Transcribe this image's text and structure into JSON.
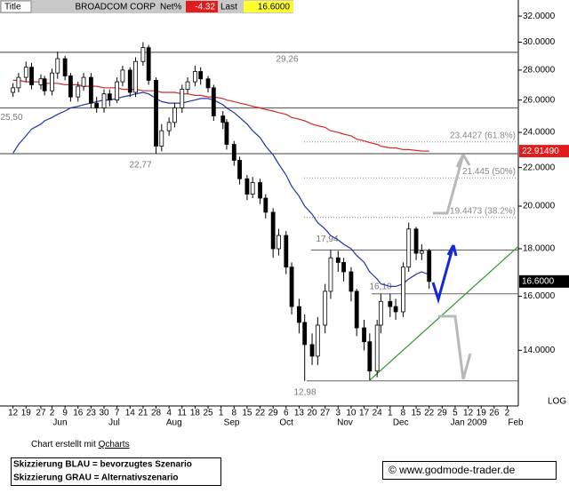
{
  "chart_data": {
    "type": "candlestick",
    "log": true,
    "header": {
      "title_label": "Title",
      "title": "BROADCOM CORP",
      "net_label": "Net%",
      "net": -4.32,
      "last_label": "Last",
      "last": {
        "value": 16.6,
        "label": "16.6000"
      }
    },
    "xlim": [
      "2008-05-05",
      "2009-02-08"
    ],
    "ylim": [
      12.2,
      33.3
    ],
    "yticks": [
      {
        "value": 14,
        "label": "14.0000"
      },
      {
        "value": 16,
        "label": "16.0000"
      },
      {
        "value": 18,
        "label": "18.0000"
      },
      {
        "value": 20,
        "label": "20.0000"
      },
      {
        "value": 22,
        "label": "22.0000"
      },
      {
        "value": 24,
        "label": "24.0000"
      },
      {
        "value": 26,
        "label": "26.0000"
      },
      {
        "value": 28,
        "label": "28.0000"
      },
      {
        "value": 30,
        "label": "30.0000"
      },
      {
        "value": 32,
        "label": "32.0000"
      }
    ],
    "xticks": [
      {
        "value": "2008-05-12",
        "label": "12"
      },
      {
        "value": "2008-05-19",
        "label": "19"
      },
      {
        "value": "2008-05-27",
        "label": "27"
      },
      {
        "value": "2008-06-02",
        "label": "2"
      },
      {
        "value": "2008-06-09",
        "label": "9"
      },
      {
        "value": "2008-06-16",
        "label": "16"
      },
      {
        "value": "2008-06-23",
        "label": "23"
      },
      {
        "value": "2008-06-30",
        "label": "30"
      },
      {
        "value": "2008-07-07",
        "label": "7"
      },
      {
        "value": "2008-07-14",
        "label": "14"
      },
      {
        "value": "2008-07-21",
        "label": "21"
      },
      {
        "value": "2008-07-28",
        "label": "28"
      },
      {
        "value": "2008-08-04",
        "label": "4"
      },
      {
        "value": "2008-08-11",
        "label": "11"
      },
      {
        "value": "2008-08-18",
        "label": "18"
      },
      {
        "value": "2008-08-25",
        "label": "25"
      },
      {
        "value": "2008-09-01",
        "label": "1"
      },
      {
        "value": "2008-09-08",
        "label": "8"
      },
      {
        "value": "2008-09-15",
        "label": "15"
      },
      {
        "value": "2008-09-22",
        "label": "22"
      },
      {
        "value": "2008-09-29",
        "label": "29"
      },
      {
        "value": "2008-10-06",
        "label": "6"
      },
      {
        "value": "2008-10-13",
        "label": "13"
      },
      {
        "value": "2008-10-20",
        "label": "20"
      },
      {
        "value": "2008-10-27",
        "label": "27"
      },
      {
        "value": "2008-11-03",
        "label": "3"
      },
      {
        "value": "2008-11-10",
        "label": "10"
      },
      {
        "value": "2008-11-17",
        "label": "17"
      },
      {
        "value": "2008-11-24",
        "label": "24"
      },
      {
        "value": "2008-12-01",
        "label": "1"
      },
      {
        "value": "2008-12-08",
        "label": "8"
      },
      {
        "value": "2008-12-15",
        "label": "15"
      },
      {
        "value": "2008-12-22",
        "label": "22"
      },
      {
        "value": "2008-12-29",
        "label": "29"
      },
      {
        "value": "2009-01-05",
        "label": "5"
      },
      {
        "value": "2009-01-12",
        "label": "12"
      },
      {
        "value": "2009-01-19",
        "label": "19"
      },
      {
        "value": "2009-01-26",
        "label": "26"
      },
      {
        "value": "2009-02-02",
        "label": "2"
      }
    ],
    "month_labels": [
      {
        "value": "2008-06",
        "label": "Jun"
      },
      {
        "value": "2008-07",
        "label": "Jul"
      },
      {
        "value": "2008-08",
        "label": "Aug"
      },
      {
        "value": "2008-09",
        "label": "Sep"
      },
      {
        "value": "2008-10",
        "label": "Oct"
      },
      {
        "value": "2008-11",
        "label": "Nov"
      },
      {
        "value": "2008-12",
        "label": "Dec"
      },
      {
        "value": "2009-01",
        "label": "Jan 2009"
      },
      {
        "value": "2009-02",
        "label": "Feb"
      }
    ],
    "x": [
      "2008-05-12",
      "2008-05-15",
      "2008-05-19",
      "2008-05-22",
      "2008-05-27",
      "2008-05-29",
      "2008-06-02",
      "2008-06-05",
      "2008-06-09",
      "2008-06-12",
      "2008-06-16",
      "2008-06-19",
      "2008-06-23",
      "2008-06-26",
      "2008-06-30",
      "2008-07-03",
      "2008-07-07",
      "2008-07-10",
      "2008-07-14",
      "2008-07-17",
      "2008-07-21",
      "2008-07-24",
      "2008-07-28",
      "2008-07-31",
      "2008-08-04",
      "2008-08-07",
      "2008-08-11",
      "2008-08-14",
      "2008-08-18",
      "2008-08-21",
      "2008-08-25",
      "2008-08-28",
      "2008-09-02",
      "2008-09-04",
      "2008-09-08",
      "2008-09-11",
      "2008-09-15",
      "2008-09-18",
      "2008-09-22",
      "2008-09-25",
      "2008-09-29",
      "2008-10-02",
      "2008-10-06",
      "2008-10-09",
      "2008-10-13",
      "2008-10-16",
      "2008-10-20",
      "2008-10-23",
      "2008-10-27",
      "2008-10-30",
      "2008-11-03",
      "2008-11-06",
      "2008-11-10",
      "2008-11-13",
      "2008-11-17",
      "2008-11-20",
      "2008-11-24",
      "2008-11-26",
      "2008-12-01",
      "2008-12-04",
      "2008-12-08",
      "2008-12-11",
      "2008-12-15",
      "2008-12-18",
      "2008-12-22"
    ],
    "open": [
      26.5,
      26.8,
      27.5,
      28.2,
      27.0,
      27.4,
      26.6,
      27.8,
      28.8,
      27.6,
      26.2,
      26.9,
      27.5,
      25.8,
      25.5,
      26.4,
      26.0,
      27.2,
      28.0,
      26.5,
      28.6,
      29.6,
      27.3,
      23.2,
      24.1,
      24.6,
      25.5,
      26.7,
      27.2,
      27.9,
      27.4,
      26.8,
      25.0,
      24.6,
      23.3,
      22.4,
      21.4,
      20.6,
      21.2,
      20.4,
      19.7,
      18.0,
      18.6,
      17.2,
      15.6,
      15.0,
      14.2,
      13.8,
      14.9,
      16.2,
      17.6,
      17.4,
      17.0,
      16.2,
      14.8,
      14.3,
      13.3,
      14.9,
      15.8,
      15.6,
      15.4,
      17.2,
      18.9,
      17.8,
      17.9
    ],
    "high": [
      27.1,
      27.8,
      28.6,
      28.5,
      27.7,
      27.6,
      28.1,
      29.3,
      29.0,
      27.8,
      27.2,
      27.8,
      27.8,
      26.2,
      26.7,
      26.7,
      27.5,
      28.3,
      28.2,
      28.9,
      30.0,
      29.8,
      27.5,
      24.5,
      24.9,
      25.8,
      27.0,
      27.5,
      28.3,
      28.2,
      27.6,
      27.0,
      25.3,
      24.8,
      23.5,
      22.6,
      21.6,
      21.5,
      21.4,
      20.6,
      19.9,
      18.9,
      18.8,
      17.4,
      15.9,
      15.3,
      14.6,
      15.2,
      16.5,
      17.94,
      17.9,
      17.6,
      17.2,
      16.3,
      15.1,
      14.6,
      15.1,
      16.1,
      16.1,
      15.9,
      17.4,
      19.2,
      19.0,
      18.2,
      18.0
    ],
    "low": [
      26.2,
      26.5,
      27.2,
      26.7,
      26.7,
      26.3,
      26.3,
      27.4,
      27.3,
      25.9,
      25.9,
      26.6,
      25.5,
      25.2,
      25.2,
      25.6,
      25.8,
      26.9,
      26.2,
      26.2,
      28.3,
      27.0,
      22.77,
      22.9,
      23.8,
      24.3,
      25.2,
      26.4,
      26.9,
      27.0,
      26.5,
      24.7,
      24.2,
      23.0,
      22.1,
      21.1,
      20.3,
      20.4,
      20.1,
      19.4,
      17.6,
      17.7,
      16.9,
      15.3,
      14.6,
      12.98,
      13.5,
      13.5,
      14.6,
      15.9,
      17.0,
      16.6,
      15.8,
      14.5,
      14.0,
      13.0,
      13.1,
      14.6,
      15.2,
      15.1,
      15.2,
      17.0,
      17.5,
      17.5,
      16.3
    ],
    "close": [
      26.8,
      27.5,
      28.2,
      27.0,
      27.4,
      26.6,
      27.8,
      28.8,
      27.6,
      26.2,
      26.9,
      27.5,
      25.8,
      25.5,
      26.4,
      26.0,
      27.2,
      28.0,
      26.5,
      28.6,
      29.6,
      27.3,
      23.2,
      24.1,
      24.6,
      25.5,
      26.7,
      27.2,
      27.9,
      27.4,
      26.8,
      25.0,
      24.6,
      23.3,
      22.4,
      21.4,
      20.6,
      21.2,
      20.4,
      19.7,
      18.0,
      18.6,
      17.2,
      15.6,
      15.0,
      14.2,
      13.8,
      14.9,
      16.2,
      17.6,
      17.4,
      17.0,
      16.2,
      14.8,
      14.3,
      13.3,
      14.9,
      15.8,
      15.6,
      15.4,
      17.2,
      18.9,
      17.8,
      17.9,
      16.6
    ],
    "series": [
      {
        "color": "#2233aa",
        "values": [
          22.8,
          23.3,
          23.8,
          24.2,
          24.5,
          24.7,
          24.9,
          25.1,
          25.3,
          25.5,
          25.6,
          25.7,
          25.8,
          25.9,
          26.0,
          26.0,
          26.1,
          26.2,
          26.3,
          26.4,
          26.5,
          26.4,
          26.1,
          25.9,
          25.8,
          25.8,
          25.8,
          25.9,
          26.0,
          26.1,
          26.1,
          26.0,
          25.7,
          25.5,
          25.2,
          24.9,
          24.5,
          24.1,
          23.7,
          23.2,
          22.7,
          22.2,
          21.6,
          21.0,
          20.5,
          20.0,
          19.6,
          19.2,
          18.9,
          18.6,
          18.4,
          18.2,
          18.0,
          17.7,
          17.4,
          17.0,
          16.7,
          16.5,
          16.4,
          16.4,
          16.5,
          16.7,
          16.9,
          17.0,
          16.88
        ]
      },
      {
        "color": "#d42a2a",
        "values": [
          27.3,
          27.3,
          27.2,
          27.2,
          27.2,
          27.1,
          27.1,
          27.1,
          27.0,
          27.0,
          27.0,
          26.9,
          26.9,
          26.9,
          26.8,
          26.8,
          26.8,
          26.7,
          26.7,
          26.7,
          26.6,
          26.6,
          26.6,
          26.5,
          26.5,
          26.5,
          26.4,
          26.4,
          26.3,
          26.3,
          26.2,
          26.2,
          26.1,
          26.0,
          25.9,
          25.8,
          25.7,
          25.6,
          25.5,
          25.4,
          25.3,
          25.2,
          25.1,
          24.9,
          24.8,
          24.7,
          24.5,
          24.4,
          24.3,
          24.1,
          24.0,
          23.9,
          23.8,
          23.6,
          23.5,
          23.4,
          23.3,
          23.2,
          23.1,
          23.1,
          23.0,
          23.0,
          22.95,
          22.92,
          22.9149
        ]
      }
    ],
    "levels": [
      {
        "value": 29.26,
        "label": "29,26"
      },
      {
        "value": 25.5,
        "label": "25,50"
      },
      {
        "value": 22.77,
        "label": "22,77"
      },
      {
        "value": 17.94,
        "label": "17,94"
      },
      {
        "value": 16.1,
        "label": "16,10"
      },
      {
        "value": 12.98,
        "label": "12,98"
      }
    ],
    "fib_levels": [
      {
        "value": 23.4427,
        "label": "23.4427 (61.8%)"
      },
      {
        "value": 21.445,
        "label": "21.445 (50%)"
      },
      {
        "value": 19.4473,
        "label": "19.4473 (38.2%)"
      }
    ],
    "trendline": {
      "color": "#2a9a2a",
      "x": [
        "2008-11-20",
        "2009-02-08"
      ],
      "values": [
        13.0,
        18.1
      ]
    },
    "price_labels": [
      {
        "value": 22.9149,
        "label": "22.91490",
        "color": "#e01c1c"
      },
      {
        "value": 16.6,
        "label": "16.6000",
        "color": "#000000"
      }
    ],
    "scale_label": "LOG"
  },
  "footer": {
    "credit_prefix": "Chart erstellt mit",
    "credit_link": "Qcharts",
    "legend": [
      "Skizzierung BLAU = bevorzugtes Szenario",
      "Skizzierung GRAU = Alternativszenario"
    ],
    "copyright": "© www.godmode-trader.de"
  }
}
